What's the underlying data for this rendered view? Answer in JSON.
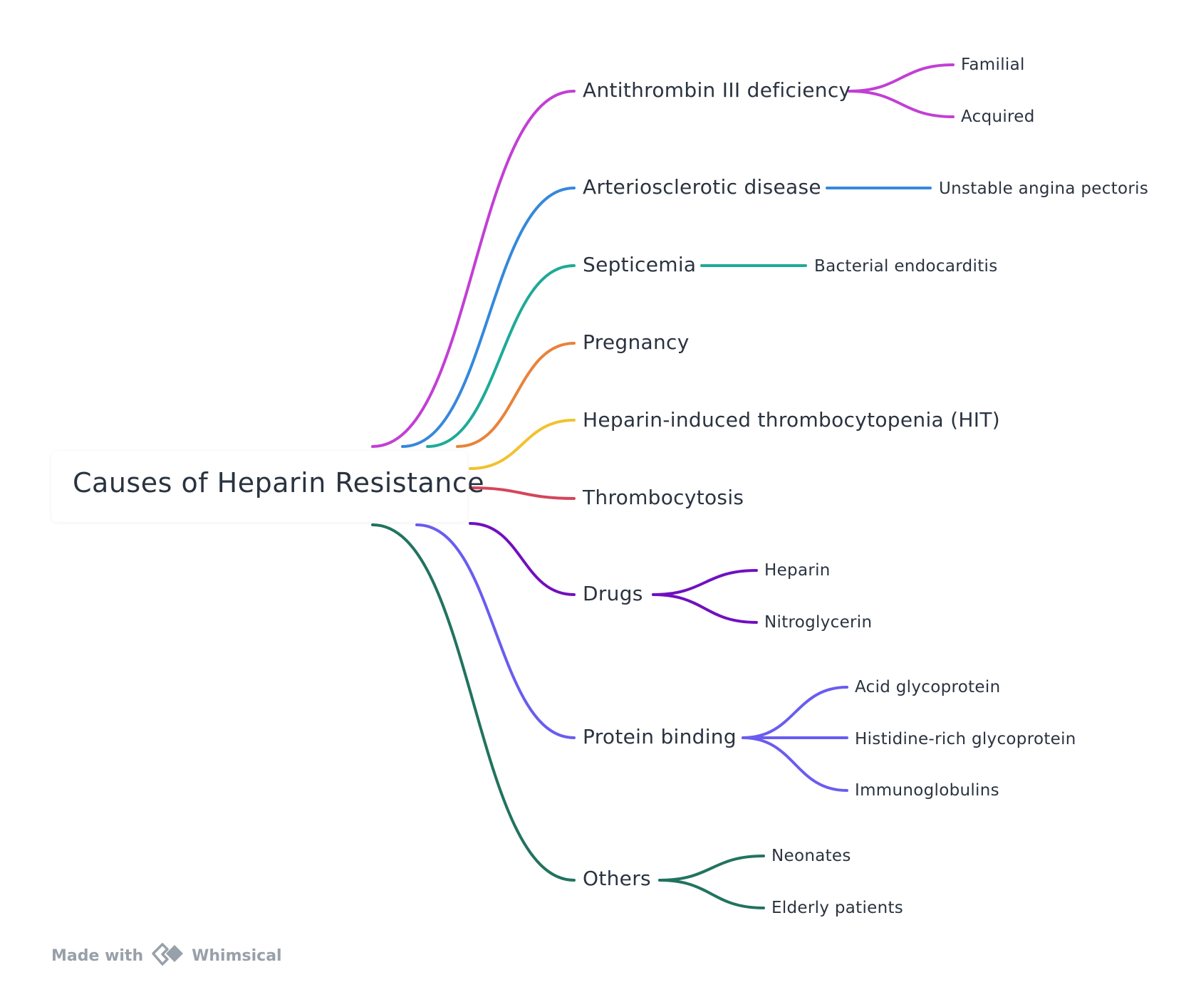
{
  "root": {
    "label": "Causes of Heparin Resistance"
  },
  "branches": [
    {
      "id": "b0",
      "label": "Antithrombin III deficiency",
      "color": "#c23fd4",
      "children": [
        "Familial",
        "Acquired"
      ]
    },
    {
      "id": "b1",
      "label": "Arteriosclerotic disease",
      "color": "#3588dc",
      "children": [
        "Unstable angina pectoris"
      ]
    },
    {
      "id": "b2",
      "label": "Septicemia",
      "color": "#1eaa98",
      "children": [
        "Bacterial endocarditis"
      ]
    },
    {
      "id": "b3",
      "label": "Pregnancy",
      "color": "#e8833a",
      "children": []
    },
    {
      "id": "b4",
      "label": "Heparin-induced thrombocytopenia (HIT)",
      "color": "#f2c12e",
      "children": []
    },
    {
      "id": "b5",
      "label": "Thrombocytosis",
      "color": "#d4455a",
      "children": []
    },
    {
      "id": "b6",
      "label": "Drugs",
      "color": "#7010c0",
      "children": [
        "Heparin",
        "Nitroglycerin"
      ]
    },
    {
      "id": "b7",
      "label": "Protein binding",
      "color": "#6a5cf0",
      "children": [
        "Acid glycoprotein",
        "Histidine-rich glycoprotein",
        "Immunoglobulins"
      ]
    },
    {
      "id": "b8",
      "label": "Others",
      "color": "#21735f",
      "children": [
        "Neonates",
        "Elderly patients"
      ]
    }
  ],
  "footer": {
    "made_with": "Made with",
    "brand": "Whimsical",
    "logo_icon": "whimsical-logo-icon",
    "color": "#98a0aa"
  }
}
